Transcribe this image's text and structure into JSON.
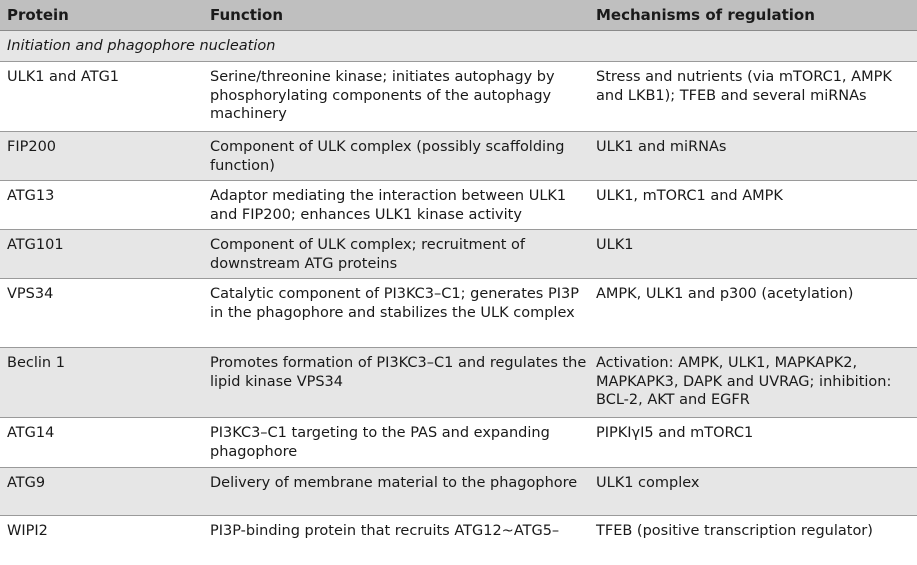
{
  "header": {
    "protein": "Protein",
    "function": "Function",
    "mechanisms": "Mechanisms of regulation"
  },
  "section_title": "Initiation and phagophore nucleation",
  "rows": [
    {
      "protein": "ULK1 and ATG1",
      "function": "Serine/threonine kinase; initiates autophagy by phosphorylating components of the autophagy machinery",
      "mechanism": "Stress and nutrients (via mTORC1, AMPK and LKB1); TFEB and several miRNAs"
    },
    {
      "protein": "FIP200",
      "function": "Component of ULK complex (possibly scaffolding function)",
      "mechanism": "ULK1 and miRNAs"
    },
    {
      "protein": "ATG13",
      "function": "Adaptor mediating the interaction between ULK1 and FIP200; enhances ULK1 kinase activity",
      "mechanism": "ULK1, mTORC1 and AMPK"
    },
    {
      "protein": "ATG101",
      "function": "Component of ULK complex; recruitment of downstream ATG proteins",
      "mechanism": "ULK1"
    },
    {
      "protein": "VPS34",
      "function": "Catalytic component of PI3KC3–C1; generates PI3P in the phagophore and stabilizes the ULK complex",
      "mechanism": "AMPK, ULK1 and p300 (acetylation)"
    },
    {
      "protein": "Beclin 1",
      "function": "Promotes formation of PI3KC3–C1 and regulates the lipid kinase VPS34",
      "mechanism": "Activation: AMPK, ULK1, MAPKAPK2, MAPKAPK3, DAPK and UVRAG; inhibition: BCL-2, AKT and EGFR"
    },
    {
      "protein": "ATG14",
      "function": "PI3KC3–C1 targeting to the PAS and expanding phagophore",
      "mechanism": "PIPKIγI5 and mTORC1"
    },
    {
      "protein": "ATG9",
      "function": "Delivery of membrane material to the phagophore",
      "mechanism": "ULK1 complex"
    },
    {
      "protein": "WIPI2",
      "function": "PI3P-binding protein that recruits ATG12~ATG5–",
      "mechanism": "TFEB (positive transcription regulator)"
    }
  ]
}
